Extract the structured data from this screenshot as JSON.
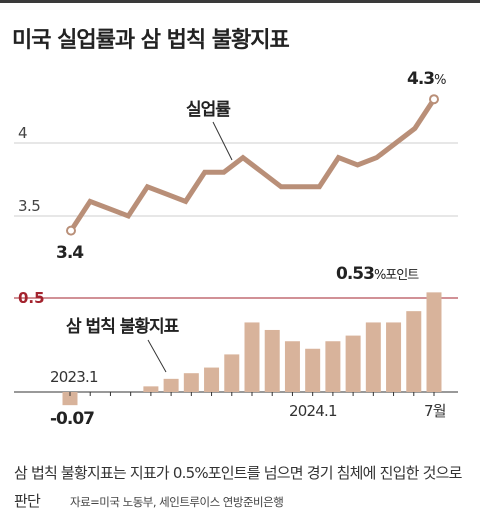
{
  "title": "미국 실업률과 삼 법칙 불황지표",
  "chart_data": [
    {
      "type": "line",
      "series": [
        {
          "name": "실업률",
          "values": [
            3.4,
            3.6,
            3.55,
            3.5,
            3.7,
            3.65,
            3.6,
            3.8,
            3.8,
            3.9,
            3.8,
            3.7,
            3.7,
            3.7,
            3.9,
            3.85,
            3.9,
            4.0,
            4.1,
            4.3
          ]
        }
      ],
      "yticks": [
        "4",
        "3.5"
      ],
      "ytick_values": [
        4,
        3.5
      ],
      "first_label": "3.4",
      "last_label_value": "4.3",
      "last_label_unit": "%",
      "series_label": "실업률"
    },
    {
      "type": "bar",
      "series": [
        {
          "name": "삼 법칙 불황지표",
          "values": [
            -0.07,
            0.0,
            0.0,
            0.0,
            0.03,
            0.07,
            0.1,
            0.13,
            0.2,
            0.37,
            0.33,
            0.27,
            0.23,
            0.27,
            0.3,
            0.37,
            0.37,
            0.43,
            0.53
          ]
        }
      ],
      "threshold": 0.5,
      "threshold_label": "0.5",
      "first_label": "-0.07",
      "last_label_value": "0.53",
      "last_label_unit": "%포인트",
      "series_label": "삼 법칙 불황지표",
      "x_labels": [
        "2023.1",
        "2024.1",
        "7월"
      ]
    }
  ],
  "caption": "삼 법칙 불황지표는 지표가 0.5%포인트를 넘으면 경기 침체에 진입한 것으로 판단",
  "source": "자료=미국 노동부, 세인트루이스 연방준비은행",
  "colors": {
    "line": "#b98f78",
    "bar": "#d8b39b",
    "threshold": "#a3232e",
    "grid": "#cfcfcf",
    "text": "#222222"
  }
}
